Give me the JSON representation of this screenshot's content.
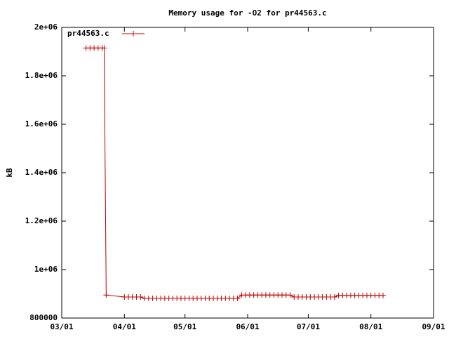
{
  "chart_data": {
    "type": "line",
    "title": "Memory usage for -O2 for pr44563.c",
    "y_label": "kB",
    "x": [
      "03/13",
      "03/15",
      "03/17",
      "03/19",
      "03/21",
      "03/22",
      "03/23",
      "04/01",
      "04/03",
      "04/05",
      "04/07",
      "04/09",
      "04/11",
      "04/13",
      "04/15",
      "04/17",
      "04/19",
      "04/21",
      "04/23",
      "04/25",
      "04/27",
      "04/29",
      "05/01",
      "05/03",
      "05/05",
      "05/07",
      "05/09",
      "05/11",
      "05/13",
      "05/15",
      "05/17",
      "05/19",
      "05/21",
      "05/23",
      "05/25",
      "05/27",
      "05/29",
      "05/31",
      "06/02",
      "06/04",
      "06/06",
      "06/08",
      "06/10",
      "06/12",
      "06/14",
      "06/16",
      "06/18",
      "06/20",
      "06/22",
      "06/24",
      "06/26",
      "06/28",
      "06/30",
      "07/02",
      "07/04",
      "07/06",
      "07/08",
      "07/10",
      "07/12",
      "07/14",
      "07/16",
      "07/18",
      "07/20",
      "07/22",
      "07/24",
      "07/26",
      "07/28",
      "07/30",
      "08/01",
      "08/03",
      "08/05",
      "08/07"
    ],
    "series": [
      {
        "name": "pr44563.c",
        "color": "#c00000",
        "values": [
          1915000,
          1915000,
          1915000,
          1915000,
          1915000,
          1915000,
          895000,
          887000,
          887000,
          887000,
          887000,
          887000,
          881000,
          881000,
          881000,
          881000,
          881000,
          881000,
          881000,
          881000,
          881000,
          881000,
          881000,
          881000,
          881000,
          881000,
          881000,
          881000,
          881000,
          881000,
          881000,
          881000,
          881000,
          881000,
          881000,
          881000,
          895000,
          895000,
          895000,
          895000,
          895000,
          895000,
          895000,
          895000,
          895000,
          895000,
          895000,
          895000,
          895000,
          887000,
          887000,
          887000,
          887000,
          887000,
          887000,
          887000,
          887000,
          887000,
          887000,
          887000,
          893000,
          893000,
          893000,
          893000,
          893000,
          893000,
          893000,
          893000,
          893000,
          893000,
          893000,
          893000
        ]
      }
    ],
    "xlim": [
      "03/01",
      "09/01"
    ],
    "xticks": [
      "03/01",
      "04/01",
      "05/01",
      "06/01",
      "07/01",
      "08/01",
      "09/01"
    ],
    "ylim": [
      800000,
      2000000
    ],
    "yticks": [
      800000,
      {
        "value": 1000000,
        "label": "1e+06"
      },
      {
        "value": 1200000,
        "label": "1.2e+06"
      },
      {
        "value": 1400000,
        "label": "1.4e+06"
      },
      {
        "value": 1600000,
        "label": "1.6e+06"
      },
      {
        "value": 1800000,
        "label": "1.8e+06"
      },
      {
        "value": 2000000,
        "label": "2e+06"
      }
    ],
    "legend": "top-left"
  }
}
